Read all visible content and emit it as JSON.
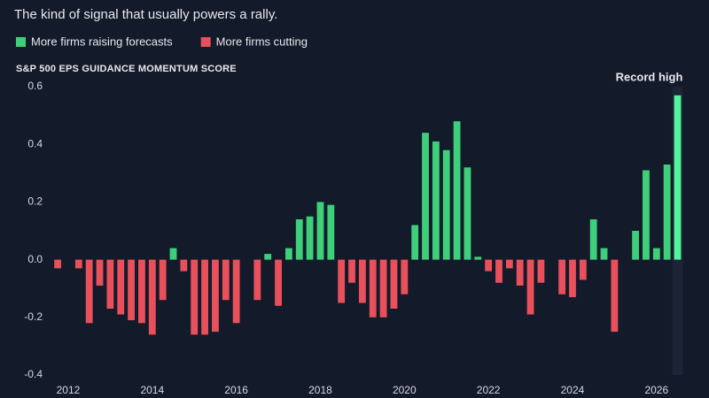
{
  "chart_data": {
    "type": "bar",
    "title": "The kind of signal that usually powers a rally.",
    "legend": [
      {
        "name": "More firms raising forecasts",
        "color": "#3ecf7a"
      },
      {
        "name": "More firms cutting",
        "color": "#e8505b"
      }
    ],
    "highlight_color": "#52f59c",
    "y_label": "S&P 500 EPS GUIDANCE MOMENTUM SCORE",
    "annotation": "Record high",
    "x": [
      2011.75,
      2012,
      2012.25,
      2012.5,
      2012.75,
      2013,
      2013.25,
      2013.5,
      2013.75,
      2014,
      2014.25,
      2014.5,
      2014.75,
      2015,
      2015.25,
      2015.5,
      2015.75,
      2016,
      2016.25,
      2016.5,
      2016.75,
      2017,
      2017.25,
      2017.5,
      2017.75,
      2018,
      2018.25,
      2018.5,
      2018.75,
      2019,
      2019.25,
      2019.5,
      2019.75,
      2020,
      2020.25,
      2020.5,
      2020.75,
      2021,
      2021.25,
      2021.5,
      2021.75,
      2022,
      2022.25,
      2022.5,
      2022.75,
      2023,
      2023.25,
      2023.5,
      2023.75,
      2024,
      2024.25,
      2024.5,
      2024.75,
      2025,
      2025.25,
      2025.5,
      2025.75,
      2026,
      2026.25,
      2026.5
    ],
    "values": [
      -0.03,
      0,
      -0.03,
      -0.22,
      -0.09,
      -0.17,
      -0.19,
      -0.21,
      -0.22,
      -0.26,
      -0.14,
      0.04,
      -0.04,
      -0.26,
      -0.26,
      -0.25,
      -0.14,
      -0.22,
      0,
      -0.14,
      0.02,
      -0.16,
      0.04,
      0.14,
      0.15,
      0.2,
      0.19,
      -0.15,
      -0.08,
      -0.15,
      -0.2,
      -0.2,
      -0.17,
      -0.12,
      0.12,
      0.44,
      0.41,
      0.38,
      0.48,
      0.32,
      0.01,
      -0.04,
      -0.08,
      -0.03,
      -0.09,
      -0.19,
      -0.08,
      0,
      -0.12,
      -0.13,
      -0.07,
      0.14,
      0.04,
      -0.25,
      0,
      0.1,
      0.31,
      0.04,
      0.33,
      0.57
    ],
    "xlim": [
      2011.6,
      2026.7
    ],
    "xticks": [
      2012,
      2014,
      2016,
      2018,
      2020,
      2022,
      2024,
      2026
    ],
    "ylim": [
      -0.4,
      0.6
    ],
    "yticks": [
      0.6,
      0.4,
      0.2,
      {
        "value": 0,
        "label": "0.0"
      },
      -0.2,
      -0.4
    ],
    "grid": false
  }
}
